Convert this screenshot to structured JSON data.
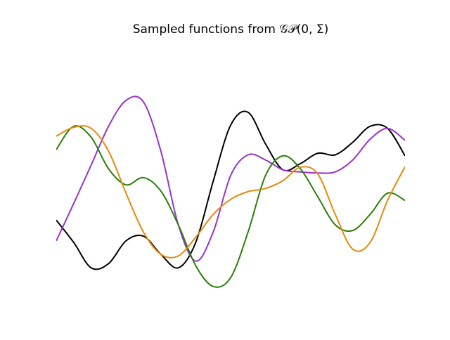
{
  "chart_data": {
    "type": "line",
    "title": "Sampled functions from 𝒢𝒫(0, Σ)",
    "x": [
      0,
      0.5,
      1,
      1.5,
      2,
      2.5,
      3,
      3.5,
      4,
      4.5,
      5,
      5.5,
      6,
      6.5,
      7,
      7.5,
      8,
      8.5,
      9,
      9.5,
      10
    ],
    "xlim": [
      0,
      10
    ],
    "ylim": [
      -2.5,
      2.5
    ],
    "series": [
      {
        "color": "#000000",
        "values": [
          -0.96,
          -1.39,
          -1.88,
          -1.8,
          -1.36,
          -1.27,
          -1.62,
          -1.88,
          -1.39,
          -0.21,
          0.87,
          1.12,
          0.51,
          0.01,
          0.13,
          0.33,
          0.3,
          0.54,
          0.85,
          0.81,
          0.28
        ]
      },
      {
        "color": "#9932cc",
        "values": [
          -1.36,
          -0.64,
          0.1,
          0.85,
          1.35,
          1.32,
          0.37,
          -1.05,
          -1.75,
          -1.19,
          -0.1,
          0.3,
          0.2,
          0.01,
          -0.03,
          -0.05,
          -0.03,
          0.2,
          0.6,
          0.81,
          0.58
        ]
      },
      {
        "color": "#2a7f0a",
        "values": [
          0.4,
          0.85,
          0.64,
          0.03,
          -0.28,
          -0.14,
          -0.4,
          -1.05,
          -1.84,
          -2.24,
          -2.07,
          -1.19,
          -0.1,
          0.28,
          0.03,
          -0.51,
          -1.05,
          -1.16,
          -0.85,
          -0.44,
          -0.58
        ]
      },
      {
        "color": "#e8890c",
        "values": [
          0.66,
          0.83,
          0.81,
          0.37,
          -0.44,
          -1.19,
          -1.62,
          -1.65,
          -1.29,
          -0.85,
          -0.56,
          -0.41,
          -0.35,
          -0.2,
          0.06,
          -0.07,
          -0.85,
          -1.52,
          -1.39,
          -0.58,
          0.07
        ]
      }
    ]
  }
}
